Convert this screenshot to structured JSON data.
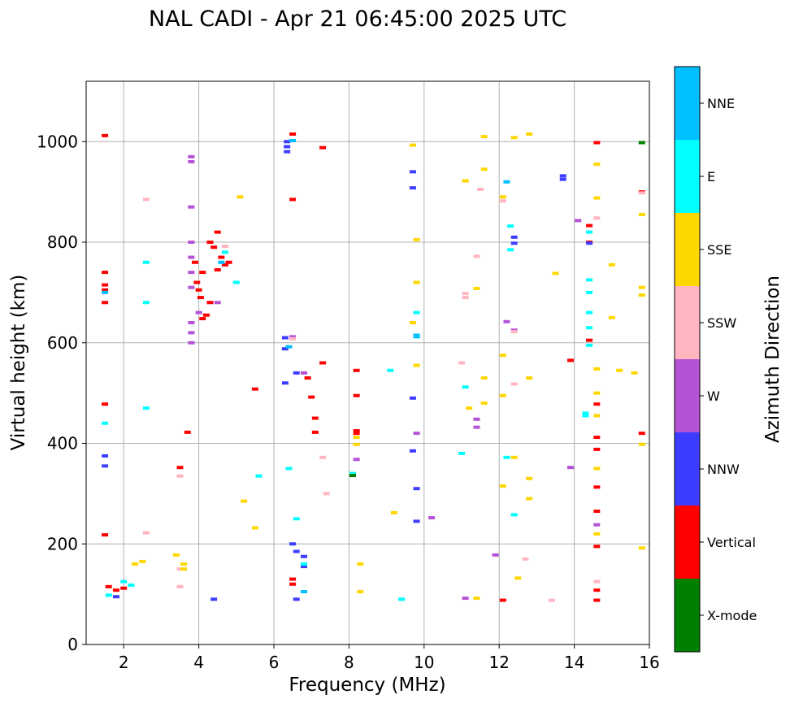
{
  "chart_data": {
    "type": "scatter",
    "title": "NAL CADI - Apr 21 06:45:00 2025 UTC",
    "xlabel": "Frequency (MHz)",
    "ylabel": "Virtual height (km)",
    "xlim": [
      1,
      16
    ],
    "ylim": [
      0,
      1120
    ],
    "xticks": [
      2,
      4,
      6,
      8,
      10,
      12,
      14,
      16
    ],
    "yticks": [
      0,
      200,
      400,
      600,
      800,
      1000
    ],
    "grid": true,
    "colorbar": {
      "label": "Azimuth Direction",
      "categories": [
        {
          "name": "X-mode",
          "color": "#008000"
        },
        {
          "name": "Vertical",
          "color": "#ff0000"
        },
        {
          "name": "NNW",
          "color": "#3d3dff"
        },
        {
          "name": "W",
          "color": "#b553d6"
        },
        {
          "name": "SSW",
          "color": "#ffb6c1"
        },
        {
          "name": "SSE",
          "color": "#ffd700"
        },
        {
          "name": "E",
          "color": "#00ffff"
        },
        {
          "name": "NNE",
          "color": "#00bfff"
        }
      ]
    },
    "series": [
      {
        "name": "Vertical",
        "points": [
          [
            1.5,
            1012
          ],
          [
            1.5,
            740
          ],
          [
            1.5,
            715
          ],
          [
            1.5,
            705
          ],
          [
            1.5,
            680
          ],
          [
            1.5,
            478
          ],
          [
            1.5,
            218
          ],
          [
            1.6,
            115
          ],
          [
            1.8,
            108
          ],
          [
            2.0,
            112
          ],
          [
            3.5,
            352
          ],
          [
            3.7,
            422
          ],
          [
            3.9,
            760
          ],
          [
            3.95,
            720
          ],
          [
            4.0,
            705
          ],
          [
            4.05,
            690
          ],
          [
            4.1,
            740
          ],
          [
            4.1,
            648
          ],
          [
            4.2,
            655
          ],
          [
            4.3,
            800
          ],
          [
            4.3,
            680
          ],
          [
            4.4,
            790
          ],
          [
            4.5,
            820
          ],
          [
            4.5,
            745
          ],
          [
            4.6,
            770
          ],
          [
            4.7,
            755
          ],
          [
            4.8,
            760
          ],
          [
            5.5,
            508
          ],
          [
            6.5,
            1015
          ],
          [
            6.5,
            885
          ],
          [
            6.5,
            130
          ],
          [
            6.5,
            120
          ],
          [
            6.9,
            530
          ],
          [
            7.0,
            492
          ],
          [
            7.1,
            422
          ],
          [
            7.1,
            450
          ],
          [
            7.3,
            560
          ],
          [
            7.3,
            988
          ],
          [
            8.2,
            545
          ],
          [
            8.2,
            495
          ],
          [
            8.2,
            425
          ],
          [
            8.2,
            420
          ],
          [
            12.1,
            88
          ],
          [
            13.9,
            565
          ],
          [
            14.4,
            605
          ],
          [
            14.4,
            800
          ],
          [
            14.4,
            833
          ],
          [
            14.6,
            998
          ],
          [
            14.6,
            478
          ],
          [
            14.6,
            412
          ],
          [
            14.6,
            388
          ],
          [
            14.6,
            313
          ],
          [
            14.6,
            265
          ],
          [
            14.6,
            195
          ],
          [
            14.6,
            108
          ],
          [
            14.6,
            88
          ],
          [
            15.8,
            420
          ],
          [
            15.8,
            900
          ]
        ]
      },
      {
        "name": "NNW",
        "points": [
          [
            1.5,
            375
          ],
          [
            1.5,
            355
          ],
          [
            1.8,
            95
          ],
          [
            4.4,
            90
          ],
          [
            6.3,
            610
          ],
          [
            6.3,
            588
          ],
          [
            6.3,
            520
          ],
          [
            6.35,
            1000
          ],
          [
            6.35,
            990
          ],
          [
            6.35,
            980
          ],
          [
            6.5,
            200
          ],
          [
            6.6,
            185
          ],
          [
            6.6,
            90
          ],
          [
            6.6,
            540
          ],
          [
            6.8,
            155
          ],
          [
            6.8,
            175
          ],
          [
            9.7,
            940
          ],
          [
            9.7,
            908
          ],
          [
            9.7,
            490
          ],
          [
            9.7,
            385
          ],
          [
            9.8,
            310
          ],
          [
            9.8,
            245
          ],
          [
            12.4,
            810
          ],
          [
            12.4,
            798
          ],
          [
            13.7,
            932
          ],
          [
            13.7,
            925
          ],
          [
            14.4,
            798
          ]
        ]
      },
      {
        "name": "W",
        "points": [
          [
            3.8,
            960
          ],
          [
            3.8,
            970
          ],
          [
            3.8,
            870
          ],
          [
            3.8,
            800
          ],
          [
            3.8,
            770
          ],
          [
            3.8,
            740
          ],
          [
            3.8,
            710
          ],
          [
            3.8,
            640
          ],
          [
            3.8,
            620
          ],
          [
            3.8,
            600
          ],
          [
            4.0,
            660
          ],
          [
            4.5,
            680
          ],
          [
            6.5,
            612
          ],
          [
            6.8,
            540
          ],
          [
            8.2,
            368
          ],
          [
            9.8,
            420
          ],
          [
            10.2,
            252
          ],
          [
            11.1,
            92
          ],
          [
            11.4,
            448
          ],
          [
            11.4,
            432
          ],
          [
            11.9,
            178
          ],
          [
            12.4,
            625
          ],
          [
            12.2,
            642
          ],
          [
            13.9,
            352
          ],
          [
            14.1,
            843
          ],
          [
            14.6,
            238
          ]
        ]
      },
      {
        "name": "SSW",
        "points": [
          [
            2.6,
            885
          ],
          [
            2.6,
            222
          ],
          [
            3.5,
            335
          ],
          [
            3.5,
            150
          ],
          [
            3.5,
            115
          ],
          [
            4.7,
            792
          ],
          [
            6.5,
            608
          ],
          [
            7.3,
            372
          ],
          [
            7.4,
            300
          ],
          [
            11.0,
            560
          ],
          [
            11.1,
            690
          ],
          [
            11.1,
            698
          ],
          [
            11.4,
            772
          ],
          [
            11.5,
            905
          ],
          [
            12.1,
            882
          ],
          [
            12.4,
            622
          ],
          [
            12.4,
            518
          ],
          [
            12.7,
            170
          ],
          [
            13.4,
            88
          ],
          [
            14.6,
            848
          ],
          [
            14.6,
            125
          ],
          [
            15.8,
            898
          ]
        ]
      },
      {
        "name": "SSE",
        "points": [
          [
            2.3,
            160
          ],
          [
            2.5,
            165
          ],
          [
            3.4,
            178
          ],
          [
            3.6,
            160
          ],
          [
            3.6,
            150
          ],
          [
            5.1,
            890
          ],
          [
            5.5,
            232
          ],
          [
            5.2,
            285
          ],
          [
            8.3,
            160
          ],
          [
            8.3,
            105
          ],
          [
            8.2,
            412
          ],
          [
            8.2,
            398
          ],
          [
            9.2,
            262
          ],
          [
            9.7,
            993
          ],
          [
            9.8,
            805
          ],
          [
            9.8,
            720
          ],
          [
            9.7,
            640
          ],
          [
            9.8,
            555
          ],
          [
            11.1,
            922
          ],
          [
            11.2,
            470
          ],
          [
            11.4,
            708
          ],
          [
            11.4,
            92
          ],
          [
            11.6,
            1010
          ],
          [
            11.6,
            945
          ],
          [
            11.6,
            530
          ],
          [
            11.6,
            480
          ],
          [
            12.1,
            890
          ],
          [
            12.1,
            575
          ],
          [
            12.1,
            495
          ],
          [
            12.1,
            315
          ],
          [
            12.4,
            1008
          ],
          [
            12.4,
            372
          ],
          [
            12.5,
            132
          ],
          [
            12.8,
            1015
          ],
          [
            12.8,
            530
          ],
          [
            12.8,
            330
          ],
          [
            12.8,
            290
          ],
          [
            13.5,
            738
          ],
          [
            14.6,
            955
          ],
          [
            14.6,
            888
          ],
          [
            14.6,
            548
          ],
          [
            14.6,
            500
          ],
          [
            14.6,
            455
          ],
          [
            14.6,
            350
          ],
          [
            14.6,
            220
          ],
          [
            15.0,
            755
          ],
          [
            15.0,
            650
          ],
          [
            15.2,
            545
          ],
          [
            15.6,
            540
          ],
          [
            15.8,
            855
          ],
          [
            15.8,
            710
          ],
          [
            15.8,
            695
          ],
          [
            15.8,
            398
          ],
          [
            15.8,
            192
          ]
        ]
      },
      {
        "name": "E",
        "points": [
          [
            1.5,
            440
          ],
          [
            1.6,
            98
          ],
          [
            2.0,
            125
          ],
          [
            2.2,
            118
          ],
          [
            2.6,
            760
          ],
          [
            2.6,
            680
          ],
          [
            2.6,
            470
          ],
          [
            4.7,
            780
          ],
          [
            5.0,
            720
          ],
          [
            5.6,
            335
          ],
          [
            6.4,
            350
          ],
          [
            6.6,
            250
          ],
          [
            6.8,
            160
          ],
          [
            8.1,
            340
          ],
          [
            9.1,
            545
          ],
          [
            9.4,
            90
          ],
          [
            9.8,
            660
          ],
          [
            11.0,
            380
          ],
          [
            11.1,
            512
          ],
          [
            12.2,
            372
          ],
          [
            12.3,
            832
          ],
          [
            12.3,
            785
          ],
          [
            12.4,
            258
          ],
          [
            14.4,
            725
          ],
          [
            14.4,
            700
          ],
          [
            14.4,
            660
          ],
          [
            14.4,
            630
          ],
          [
            14.4,
            595
          ],
          [
            14.3,
            460
          ],
          [
            14.3,
            455
          ],
          [
            14.4,
            820
          ]
        ]
      },
      {
        "name": "NNE",
        "points": [
          [
            1.5,
            700
          ],
          [
            4.6,
            760
          ],
          [
            6.5,
            1002
          ],
          [
            6.4,
            592
          ],
          [
            6.8,
            105
          ],
          [
            9.8,
            615
          ],
          [
            9.8,
            612
          ],
          [
            12.2,
            920
          ]
        ]
      },
      {
        "name": "X-mode",
        "points": [
          [
            15.8,
            998
          ],
          [
            8.1,
            336
          ]
        ]
      }
    ]
  }
}
